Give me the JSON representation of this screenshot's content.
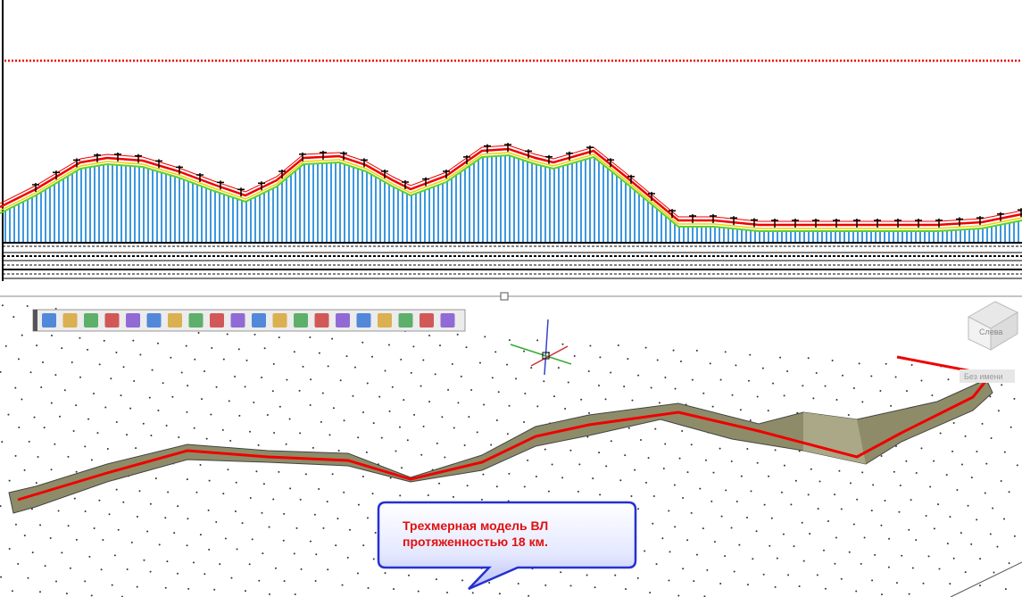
{
  "callout": {
    "lines": [
      "Трехмерная модель ВЛ",
      "протяженностью 18 км."
    ]
  },
  "viewcube": {
    "face": "Слева"
  },
  "view_label": "Без имени"
}
